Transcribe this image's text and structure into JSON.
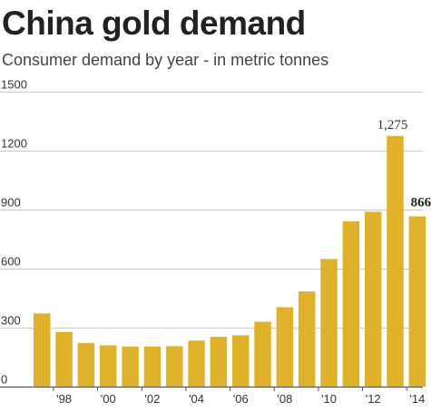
{
  "header": {
    "title": "China gold demand",
    "subtitle": "Consumer demand by year - in metric tonnes"
  },
  "chart_data": {
    "type": "bar",
    "title": "China gold demand",
    "subtitle": "Consumer demand by year - in metric tonnes",
    "xlabel": "",
    "ylabel": "",
    "categories": [
      "1997",
      "1998",
      "1999",
      "2000",
      "2001",
      "2002",
      "2003",
      "2004",
      "2005",
      "2006",
      "2007",
      "2008",
      "2009",
      "2010",
      "2011",
      "2012",
      "2013",
      "2014"
    ],
    "values": [
      372,
      278,
      222,
      210,
      204,
      204,
      206,
      234,
      253,
      261,
      330,
      404,
      484,
      649,
      841,
      889,
      1275,
      866
    ],
    "x_tick_labels": [
      "'98",
      "'00",
      "'02",
      "'04",
      "'06",
      "'08",
      "'10",
      "'12",
      "'14"
    ],
    "x_tick_categories": [
      "1998",
      "2000",
      "2002",
      "2004",
      "2006",
      "2008",
      "2010",
      "2012",
      "2014"
    ],
    "y_ticks": [
      0,
      300,
      600,
      900,
      1200,
      1500
    ],
    "y_tick_labels": [
      "0",
      "300",
      "600",
      "900",
      "1200",
      "1500"
    ],
    "ylim": [
      0,
      1500
    ],
    "grid": true,
    "legend": "none",
    "bar_color": "#e0b12a",
    "annotations": [
      {
        "category": "2013",
        "text": "1,275",
        "bold": false
      },
      {
        "category": "2014",
        "text": "866",
        "bold": true
      }
    ]
  }
}
